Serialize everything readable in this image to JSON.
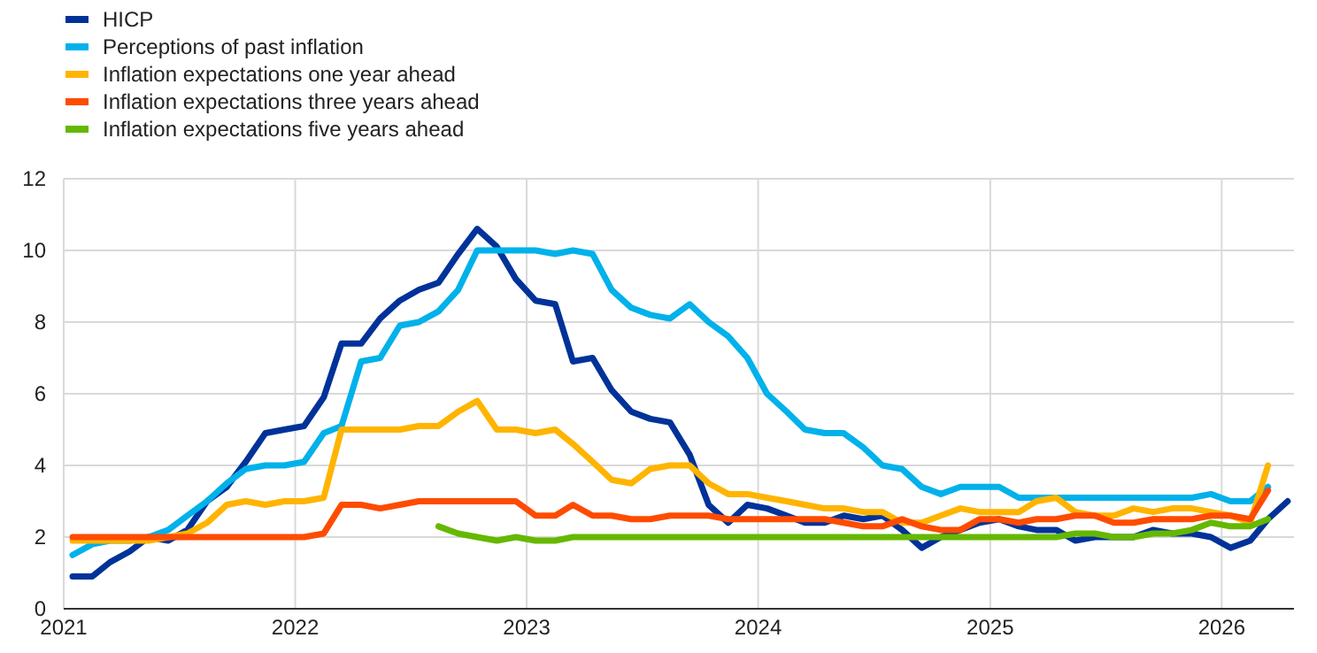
{
  "chart_data": {
    "type": "line",
    "x": [
      "2021-01-15",
      "2021-02-15",
      "2021-03-15",
      "2021-04-15",
      "2021-05-15",
      "2021-06-15",
      "2021-07-15",
      "2021-08-15",
      "2021-09-15",
      "2021-10-15",
      "2021-11-15",
      "2021-12-15",
      "2022-01-15",
      "2022-02-15",
      "2022-03-15",
      "2022-04-15",
      "2022-05-15",
      "2022-06-15",
      "2022-07-15",
      "2022-08-15",
      "2022-09-15",
      "2022-10-15",
      "2022-11-15",
      "2022-12-15",
      "2023-01-15",
      "2023-02-15",
      "2023-03-15",
      "2023-04-15",
      "2023-05-15",
      "2023-06-15",
      "2023-07-15",
      "2023-08-15",
      "2023-09-15",
      "2023-10-15",
      "2023-11-15",
      "2023-12-15",
      "2024-01-15",
      "2024-02-15",
      "2024-03-15",
      "2024-04-15",
      "2024-05-15",
      "2024-06-15",
      "2024-07-15",
      "2024-08-15",
      "2024-09-15",
      "2024-10-15",
      "2024-11-15",
      "2024-12-15",
      "2025-01-15",
      "2025-02-15",
      "2025-03-15",
      "2025-04-15",
      "2025-05-15",
      "2025-06-15",
      "2025-07-15",
      "2025-08-15",
      "2025-09-15",
      "2025-10-15",
      "2025-11-15",
      "2025-12-15",
      "2026-01-15",
      "2026-02-15",
      "2026-03-15",
      "2026-04-15"
    ],
    "series": [
      {
        "name": "HICP",
        "color": "#003299",
        "values": [
          0.9,
          0.9,
          1.3,
          1.6,
          2.0,
          1.9,
          2.2,
          3.0,
          3.4,
          4.1,
          4.9,
          5.0,
          5.1,
          5.9,
          7.4,
          7.4,
          8.1,
          8.6,
          8.9,
          9.1,
          9.9,
          10.6,
          10.1,
          9.2,
          8.6,
          8.5,
          6.9,
          7.0,
          6.1,
          5.5,
          5.3,
          5.2,
          4.3,
          2.9,
          2.4,
          2.9,
          2.8,
          2.6,
          2.4,
          2.4,
          2.6,
          2.5,
          2.6,
          2.2,
          1.7,
          2.0,
          2.2,
          2.4,
          2.5,
          2.3,
          2.2,
          2.2,
          1.9,
          2.0,
          2.0,
          2.0,
          2.2,
          2.1,
          2.1,
          2.0,
          1.7,
          1.9,
          2.5,
          3.0
        ]
      },
      {
        "name": "Perceptions of past inflation",
        "color": "#00b1ea",
        "values": [
          1.5,
          1.8,
          1.9,
          1.9,
          2.0,
          2.2,
          2.6,
          3.0,
          3.5,
          3.9,
          4.0,
          4.0,
          4.1,
          4.9,
          5.1,
          6.9,
          7.0,
          7.9,
          8.0,
          8.3,
          8.9,
          10.0,
          10.0,
          10.0,
          10.0,
          9.9,
          10.0,
          9.9,
          8.9,
          8.4,
          8.2,
          8.1,
          8.5,
          8.0,
          7.6,
          7.0,
          6.0,
          5.5,
          5.0,
          4.9,
          4.9,
          4.5,
          4.0,
          3.9,
          3.4,
          3.2,
          3.4,
          3.4,
          3.4,
          3.1,
          3.1,
          3.1,
          3.1,
          3.1,
          3.1,
          3.1,
          3.1,
          3.1,
          3.1,
          3.2,
          3.0,
          3.0,
          3.4,
          null
        ]
      },
      {
        "name": "Inflation expectations one year ahead",
        "color": "#ffb400",
        "values": [
          1.9,
          1.9,
          1.9,
          1.9,
          1.9,
          2.0,
          2.1,
          2.4,
          2.9,
          3.0,
          2.9,
          3.0,
          3.0,
          3.1,
          5.0,
          5.0,
          5.0,
          5.0,
          5.1,
          5.1,
          5.5,
          5.8,
          5.0,
          5.0,
          4.9,
          5.0,
          4.6,
          4.1,
          3.6,
          3.5,
          3.9,
          4.0,
          4.0,
          3.5,
          3.2,
          3.2,
          3.1,
          3.0,
          2.9,
          2.8,
          2.8,
          2.7,
          2.7,
          2.4,
          2.4,
          2.6,
          2.8,
          2.7,
          2.7,
          2.7,
          3.0,
          3.1,
          2.7,
          2.6,
          2.6,
          2.8,
          2.7,
          2.8,
          2.8,
          2.7,
          2.6,
          2.4,
          4.0,
          null
        ]
      },
      {
        "name": "Inflation expectations three years ahead",
        "color": "#ff4b00",
        "values": [
          2.0,
          2.0,
          2.0,
          2.0,
          2.0,
          2.0,
          2.0,
          2.0,
          2.0,
          2.0,
          2.0,
          2.0,
          2.0,
          2.1,
          2.9,
          2.9,
          2.8,
          2.9,
          3.0,
          3.0,
          3.0,
          3.0,
          3.0,
          3.0,
          2.6,
          2.6,
          2.9,
          2.6,
          2.6,
          2.5,
          2.5,
          2.6,
          2.6,
          2.6,
          2.5,
          2.5,
          2.5,
          2.5,
          2.5,
          2.5,
          2.4,
          2.3,
          2.3,
          2.5,
          2.3,
          2.2,
          2.2,
          2.5,
          2.5,
          2.4,
          2.5,
          2.5,
          2.6,
          2.6,
          2.4,
          2.4,
          2.5,
          2.5,
          2.5,
          2.6,
          2.6,
          2.5,
          3.3,
          null
        ]
      },
      {
        "name": "Inflation expectations five years ahead",
        "color": "#65b800",
        "values": [
          null,
          null,
          null,
          null,
          null,
          null,
          null,
          null,
          null,
          null,
          null,
          null,
          null,
          null,
          null,
          null,
          null,
          null,
          null,
          2.3,
          2.1,
          2.0,
          1.9,
          2.0,
          1.9,
          1.9,
          2.0,
          2.0,
          2.0,
          2.0,
          2.0,
          2.0,
          2.0,
          2.0,
          2.0,
          2.0,
          2.0,
          2.0,
          2.0,
          2.0,
          2.0,
          2.0,
          2.0,
          2.0,
          2.0,
          2.0,
          2.0,
          2.0,
          2.0,
          2.0,
          2.0,
          2.0,
          2.1,
          2.1,
          2.0,
          2.0,
          2.1,
          2.1,
          2.2,
          2.4,
          2.3,
          2.3,
          2.5,
          null
        ]
      }
    ],
    "xlim": [
      "2021-01-01",
      "2026-04-25"
    ],
    "xticks": [
      {
        "value": "2021-01-01",
        "label": "2021"
      },
      {
        "value": "2022-01-01",
        "label": "2022"
      },
      {
        "value": "2023-01-01",
        "label": "2023"
      },
      {
        "value": "2024-01-01",
        "label": "2024"
      },
      {
        "value": "2025-01-01",
        "label": "2025"
      },
      {
        "value": "2026-01-01",
        "label": "2026"
      }
    ],
    "ylim": [
      0,
      12
    ],
    "yticks": [
      0,
      2,
      4,
      6,
      8,
      10,
      12
    ],
    "grid": true,
    "legend": "top left",
    "line_style": "solid",
    "marker": "none"
  }
}
